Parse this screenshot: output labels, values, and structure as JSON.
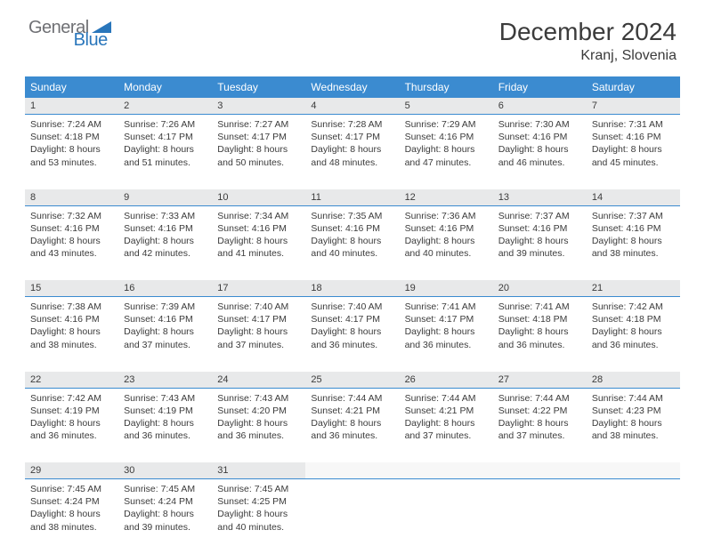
{
  "logo": {
    "text1": "General",
    "text2": "Blue",
    "color1": "#6f7074",
    "color2": "#2976bb"
  },
  "header": {
    "title": "December 2024",
    "location": "Kranj, Slovenia"
  },
  "colors": {
    "header_bg": "#3b8bd0",
    "header_text": "#ffffff",
    "daynum_bg": "#e8e9ea",
    "divider": "#3b8bd0",
    "text": "#3b3b3b",
    "page_bg": "#ffffff"
  },
  "weekdays": [
    "Sunday",
    "Monday",
    "Tuesday",
    "Wednesday",
    "Thursday",
    "Friday",
    "Saturday"
  ],
  "days": [
    {
      "n": 1,
      "sr": "7:24 AM",
      "ss": "4:18 PM",
      "dl": "8 hours and 53 minutes."
    },
    {
      "n": 2,
      "sr": "7:26 AM",
      "ss": "4:17 PM",
      "dl": "8 hours and 51 minutes."
    },
    {
      "n": 3,
      "sr": "7:27 AM",
      "ss": "4:17 PM",
      "dl": "8 hours and 50 minutes."
    },
    {
      "n": 4,
      "sr": "7:28 AM",
      "ss": "4:17 PM",
      "dl": "8 hours and 48 minutes."
    },
    {
      "n": 5,
      "sr": "7:29 AM",
      "ss": "4:16 PM",
      "dl": "8 hours and 47 minutes."
    },
    {
      "n": 6,
      "sr": "7:30 AM",
      "ss": "4:16 PM",
      "dl": "8 hours and 46 minutes."
    },
    {
      "n": 7,
      "sr": "7:31 AM",
      "ss": "4:16 PM",
      "dl": "8 hours and 45 minutes."
    },
    {
      "n": 8,
      "sr": "7:32 AM",
      "ss": "4:16 PM",
      "dl": "8 hours and 43 minutes."
    },
    {
      "n": 9,
      "sr": "7:33 AM",
      "ss": "4:16 PM",
      "dl": "8 hours and 42 minutes."
    },
    {
      "n": 10,
      "sr": "7:34 AM",
      "ss": "4:16 PM",
      "dl": "8 hours and 41 minutes."
    },
    {
      "n": 11,
      "sr": "7:35 AM",
      "ss": "4:16 PM",
      "dl": "8 hours and 40 minutes."
    },
    {
      "n": 12,
      "sr": "7:36 AM",
      "ss": "4:16 PM",
      "dl": "8 hours and 40 minutes."
    },
    {
      "n": 13,
      "sr": "7:37 AM",
      "ss": "4:16 PM",
      "dl": "8 hours and 39 minutes."
    },
    {
      "n": 14,
      "sr": "7:37 AM",
      "ss": "4:16 PM",
      "dl": "8 hours and 38 minutes."
    },
    {
      "n": 15,
      "sr": "7:38 AM",
      "ss": "4:16 PM",
      "dl": "8 hours and 38 minutes."
    },
    {
      "n": 16,
      "sr": "7:39 AM",
      "ss": "4:16 PM",
      "dl": "8 hours and 37 minutes."
    },
    {
      "n": 17,
      "sr": "7:40 AM",
      "ss": "4:17 PM",
      "dl": "8 hours and 37 minutes."
    },
    {
      "n": 18,
      "sr": "7:40 AM",
      "ss": "4:17 PM",
      "dl": "8 hours and 36 minutes."
    },
    {
      "n": 19,
      "sr": "7:41 AM",
      "ss": "4:17 PM",
      "dl": "8 hours and 36 minutes."
    },
    {
      "n": 20,
      "sr": "7:41 AM",
      "ss": "4:18 PM",
      "dl": "8 hours and 36 minutes."
    },
    {
      "n": 21,
      "sr": "7:42 AM",
      "ss": "4:18 PM",
      "dl": "8 hours and 36 minutes."
    },
    {
      "n": 22,
      "sr": "7:42 AM",
      "ss": "4:19 PM",
      "dl": "8 hours and 36 minutes."
    },
    {
      "n": 23,
      "sr": "7:43 AM",
      "ss": "4:19 PM",
      "dl": "8 hours and 36 minutes."
    },
    {
      "n": 24,
      "sr": "7:43 AM",
      "ss": "4:20 PM",
      "dl": "8 hours and 36 minutes."
    },
    {
      "n": 25,
      "sr": "7:44 AM",
      "ss": "4:21 PM",
      "dl": "8 hours and 36 minutes."
    },
    {
      "n": 26,
      "sr": "7:44 AM",
      "ss": "4:21 PM",
      "dl": "8 hours and 37 minutes."
    },
    {
      "n": 27,
      "sr": "7:44 AM",
      "ss": "4:22 PM",
      "dl": "8 hours and 37 minutes."
    },
    {
      "n": 28,
      "sr": "7:44 AM",
      "ss": "4:23 PM",
      "dl": "8 hours and 38 minutes."
    },
    {
      "n": 29,
      "sr": "7:45 AM",
      "ss": "4:24 PM",
      "dl": "8 hours and 38 minutes."
    },
    {
      "n": 30,
      "sr": "7:45 AM",
      "ss": "4:24 PM",
      "dl": "8 hours and 39 minutes."
    },
    {
      "n": 31,
      "sr": "7:45 AM",
      "ss": "4:25 PM",
      "dl": "8 hours and 40 minutes."
    }
  ],
  "labels": {
    "sunrise": "Sunrise:",
    "sunset": "Sunset:",
    "daylight": "Daylight:"
  },
  "layout": {
    "first_weekday_index": 0,
    "weeks": 5,
    "cols": 7
  }
}
